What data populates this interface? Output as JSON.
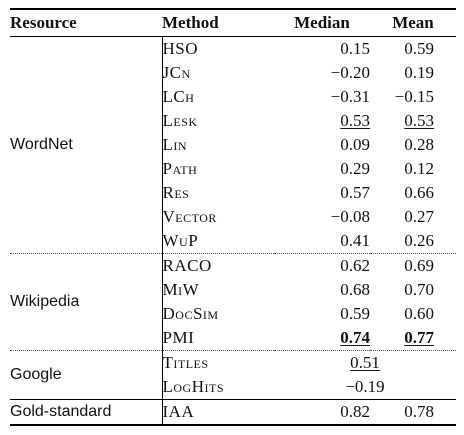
{
  "headers": {
    "resource": "Resource",
    "method": "Method",
    "median": "Median",
    "mean": "Mean"
  },
  "groups": {
    "wordnet": {
      "label": "WordNet",
      "rows": [
        {
          "method": "HSO",
          "median": "0.15",
          "mean": "0.59"
        },
        {
          "method": "JCn",
          "median": "−0.20",
          "mean": "0.19"
        },
        {
          "method": "LCh",
          "median": "−0.31",
          "mean": "−0.15"
        },
        {
          "method": "Lesk",
          "median": "0.53",
          "mean": "0.53"
        },
        {
          "method": "Lin",
          "median": "0.09",
          "mean": "0.28"
        },
        {
          "method": "Path",
          "median": "0.29",
          "mean": "0.12"
        },
        {
          "method": "Res",
          "median": "0.57",
          "mean": "0.66"
        },
        {
          "method": "Vector",
          "median": "−0.08",
          "mean": "0.27"
        },
        {
          "method": "WuP",
          "median": "0.41",
          "mean": "0.26"
        }
      ]
    },
    "wikipedia": {
      "label": "Wikipedia",
      "rows": [
        {
          "method": "RACO",
          "median": "0.62",
          "mean": "0.69"
        },
        {
          "method": "MiW",
          "median": "0.68",
          "mean": "0.70"
        },
        {
          "method": "DocSim",
          "median": "0.59",
          "mean": "0.60"
        },
        {
          "method": "PMI",
          "median": "0.74",
          "mean": "0.77"
        }
      ]
    },
    "google": {
      "label": "Google",
      "rows": [
        {
          "method": "Titles",
          "value": "0.51"
        },
        {
          "method": "LogHits",
          "value": "−0.19"
        }
      ]
    },
    "gold": {
      "label": "Gold-standard",
      "rows": [
        {
          "method": "IAA",
          "median": "0.82",
          "mean": "0.78"
        }
      ]
    }
  }
}
